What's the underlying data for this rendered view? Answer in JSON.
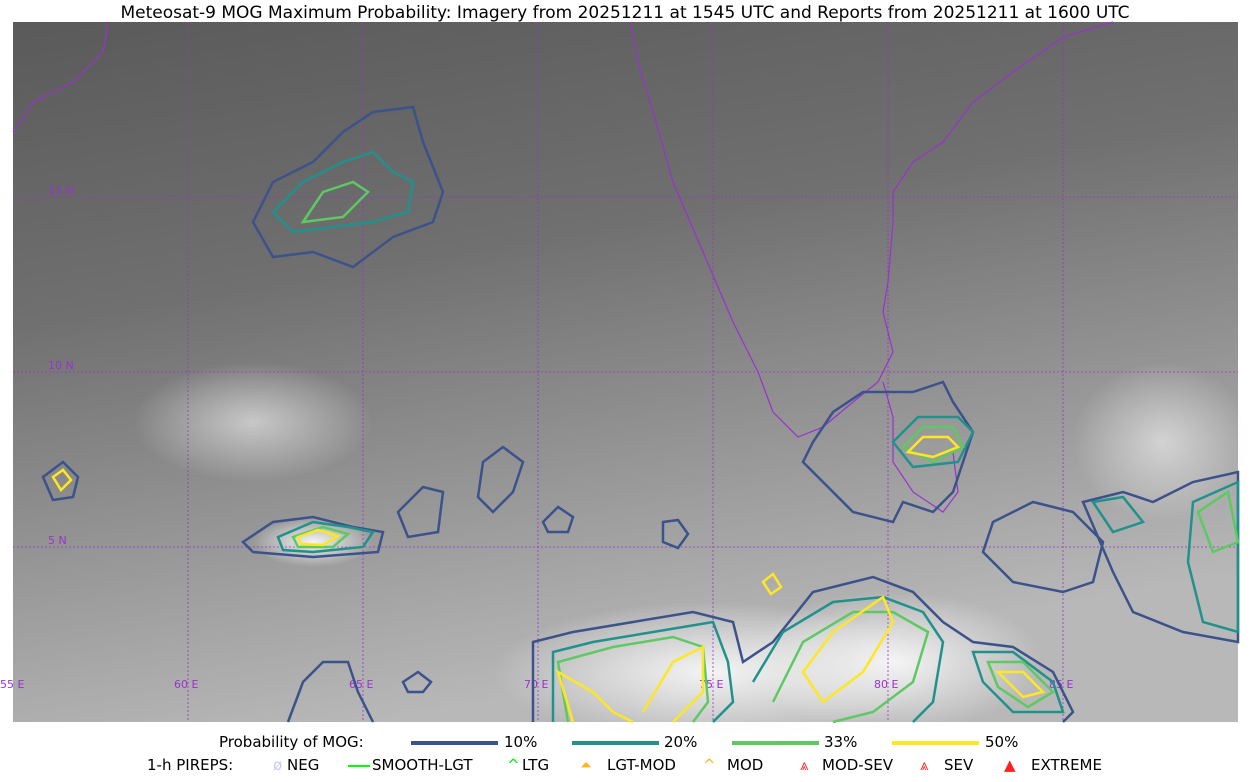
{
  "title": "Meteosat-9 MOG Maximum Probability: Imagery from 20251211 at 1545 UTC and Reports from 20251211 at 1600 UTC",
  "map": {
    "lon_labels": [
      "55 E",
      "60 E",
      "65 E",
      "70 E",
      "75 E",
      "80 E",
      "85 E"
    ],
    "lat_labels": [
      "15 N",
      "10 N",
      "5 N"
    ],
    "gridline_color": "#9933cc",
    "coastline_color": "#9933cc"
  },
  "legend": {
    "prob_label": "Probability of MOG:",
    "levels": [
      {
        "label": "10%",
        "color": "#3b528b"
      },
      {
        "label": "20%",
        "color": "#21918c"
      },
      {
        "label": "33%",
        "color": "#5ec962"
      },
      {
        "label": "50%",
        "color": "#fde725"
      }
    ],
    "pirep_label": "1-h PIREPS:",
    "pireps": [
      {
        "label": "NEG",
        "color": "#c8c8f8",
        "icon": "neg-icon"
      },
      {
        "label": "SMOOTH-LGT",
        "color": "#00ff00",
        "icon": "smooth-lgt-icon"
      },
      {
        "label": "LTG",
        "color": "#00ee00",
        "icon": "ltg-icon"
      },
      {
        "label": "LGT-MOD",
        "color": "#ffb520",
        "icon": "lgt-mod-icon"
      },
      {
        "label": "MOD",
        "color": "#ffb520",
        "icon": "mod-icon"
      },
      {
        "label": "MOD-SEV",
        "color": "#ff3030",
        "icon": "mod-sev-icon"
      },
      {
        "label": "SEV",
        "color": "#ff3030",
        "icon": "sev-icon"
      },
      {
        "label": "EXTREME",
        "color": "#ff2020",
        "icon": "extreme-icon"
      }
    ]
  }
}
